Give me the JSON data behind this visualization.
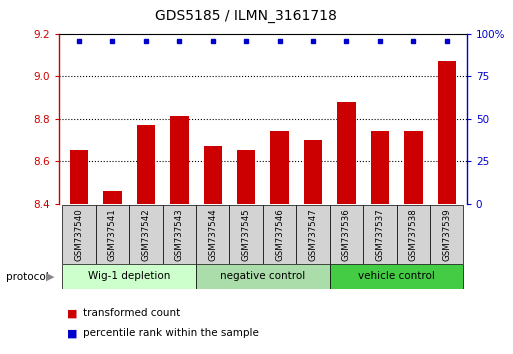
{
  "title": "GDS5185 / ILMN_3161718",
  "samples": [
    "GSM737540",
    "GSM737541",
    "GSM737542",
    "GSM737543",
    "GSM737544",
    "GSM737545",
    "GSM737546",
    "GSM737547",
    "GSM737536",
    "GSM737537",
    "GSM737538",
    "GSM737539"
  ],
  "red_values": [
    8.65,
    8.46,
    8.77,
    8.81,
    8.67,
    8.65,
    8.74,
    8.7,
    8.88,
    8.74,
    8.74,
    9.07
  ],
  "ylim_left": [
    8.4,
    9.2
  ],
  "ylim_right": [
    0,
    100
  ],
  "yticks_left": [
    8.4,
    8.6,
    8.8,
    9.0,
    9.2
  ],
  "yticks_right": [
    0,
    25,
    50,
    75,
    100
  ],
  "ytick_right_labels": [
    "0",
    "25",
    "50",
    "75",
    "100%"
  ],
  "grid_lines": [
    8.6,
    8.8,
    9.0
  ],
  "groups": [
    {
      "label": "Wig-1 depletion",
      "start": 0,
      "end": 3,
      "color": "#ccffcc"
    },
    {
      "label": "negative control",
      "start": 4,
      "end": 7,
      "color": "#aaddaa"
    },
    {
      "label": "vehicle control",
      "start": 8,
      "end": 11,
      "color": "#44cc44"
    }
  ],
  "protocol_label": "protocol",
  "legend_red": "transformed count",
  "legend_blue": "percentile rank within the sample",
  "bar_color": "#cc0000",
  "dot_color": "#0000cc",
  "bar_bottom": 8.4,
  "dot_percentile": 100,
  "bar_width": 0.55
}
